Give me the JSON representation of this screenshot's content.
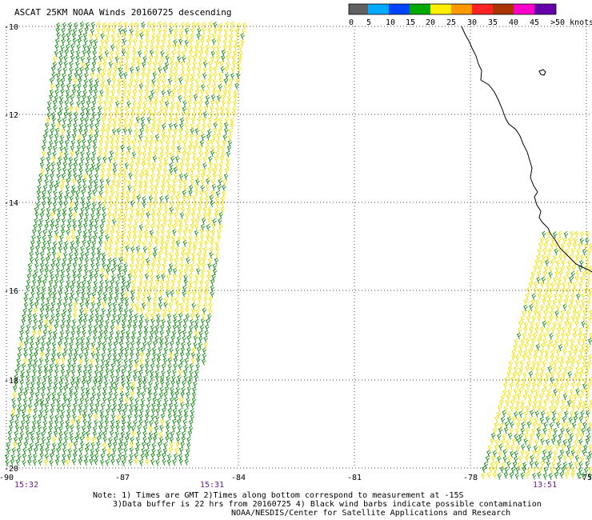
{
  "title": "ASCAT 25KM NOAA Winds 20160725 descending",
  "colorbar": {
    "colors": [
      "#606060",
      "#00aaff",
      "#0044ff",
      "#00aa00",
      "#ffee00",
      "#ff9900",
      "#ff2222",
      "#aa3300",
      "#ff00cc",
      "#6600aa"
    ],
    "labels": [
      "0",
      "5",
      "10",
      "15",
      "20",
      "25",
      "30",
      "35",
      "40",
      "45",
      ">50 knots"
    ]
  },
  "axes": {
    "lat_labels": [
      "-10",
      "-12",
      "-14",
      "-16",
      "-18",
      "-20"
    ],
    "lon_labels": [
      "-90",
      "-87",
      "-84",
      "-81",
      "-78",
      "-75"
    ]
  },
  "pass_times": [
    "15:32",
    "15:31",
    "13:51"
  ],
  "notes": [
    "Note: 1) Times are GMT 2)Times along bottom correspond to measurement at -15S",
    "3)Data buffer is 22 hrs from 20160725 4) Black wind barbs indicate possible contamination",
    "NOAA/NESDIS/Center for Satellite Applications and Research"
  ],
  "swath_colors": {
    "moderate": "#1a8c1a",
    "strong": "#f2e200"
  }
}
